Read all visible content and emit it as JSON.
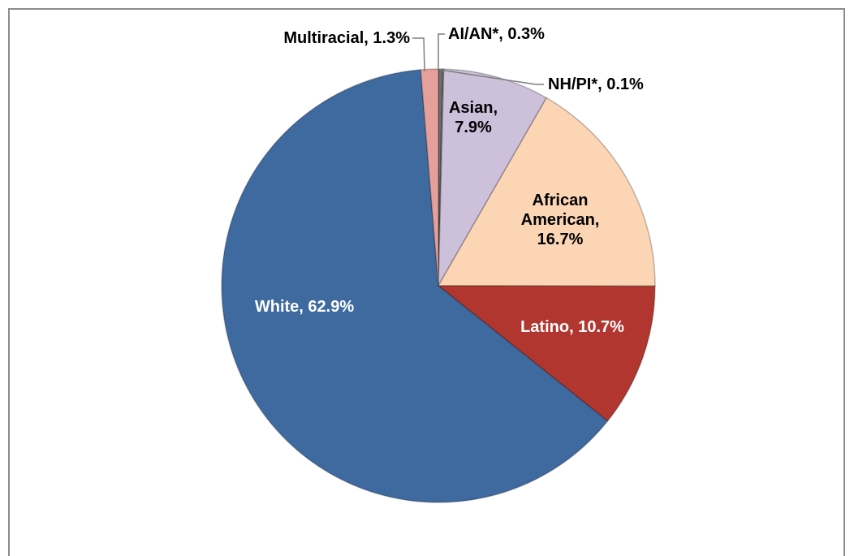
{
  "chart_data": {
    "type": "pie",
    "values": [
      0.3,
      0.1,
      7.9,
      16.7,
      10.7,
      62.9,
      1.3
    ],
    "value_labels": [
      "AI/AN*, 0.3%",
      "NH/PI*, 0.1%",
      "Asian, 7.9%",
      "African American, 16.7%",
      "Latino, 10.7%",
      "White, 62.9%",
      "Multiracial, 1.3%"
    ],
    "colors": [
      "#6f6f6f",
      "#8a8a8a",
      "#ccc0da",
      "#fcd5b5",
      "#b0362f",
      "#3e6aa0",
      "#e6a09b"
    ]
  }
}
